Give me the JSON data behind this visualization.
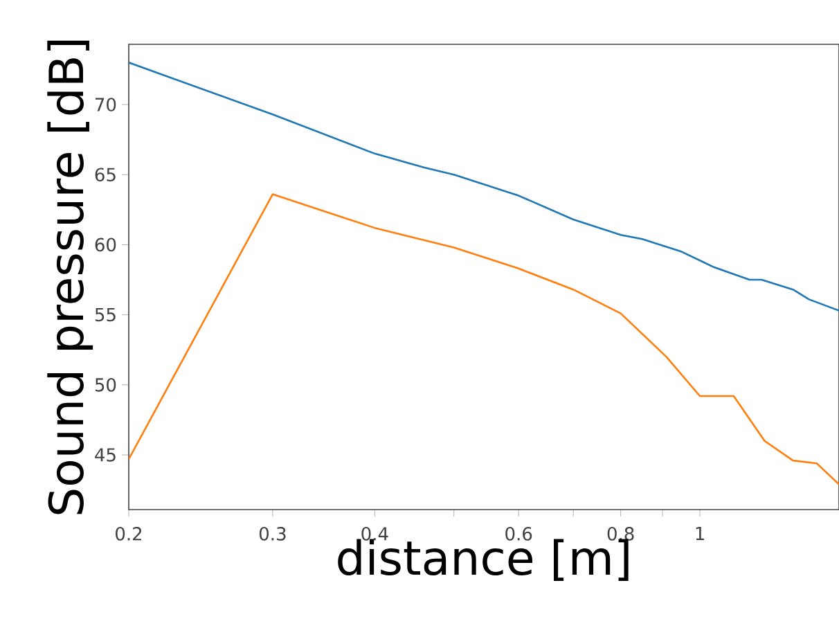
{
  "chart_data": {
    "type": "line",
    "xlabel": "distance [m]",
    "ylabel": "Sound pressure [dB]",
    "log": "x",
    "xlim": [
      0.2,
      1.48
    ],
    "ylim": [
      41.1,
      74.3
    ],
    "xticks": [
      0.2,
      0.3,
      0.4,
      {
        "value": 0.5,
        "label": null
      },
      0.6,
      {
        "value": 0.7,
        "label": null
      },
      0.8,
      {
        "value": 0.9,
        "label": null
      },
      1
    ],
    "yticks": [
      45,
      50,
      55,
      60,
      65,
      70
    ],
    "grid": false,
    "series": [
      {
        "color": "#1f77b4",
        "x": [
          0.2,
          0.3,
          0.4,
          0.46,
          0.5,
          0.6,
          0.7,
          0.8,
          0.85,
          0.95,
          1.04,
          1.15,
          1.19,
          1.3,
          1.36,
          1.48
        ],
        "values": [
          73.0,
          69.3,
          66.5,
          65.5,
          65.0,
          63.5,
          61.8,
          60.7,
          60.4,
          59.5,
          58.4,
          57.5,
          57.5,
          56.8,
          56.1,
          55.3
        ]
      },
      {
        "color": "#ff7f0e",
        "x": [
          0.2,
          0.3,
          0.4,
          0.5,
          0.6,
          0.7,
          0.8,
          0.91,
          1.0,
          1.1,
          1.2,
          1.3,
          1.39,
          1.48
        ],
        "values": [
          44.7,
          63.6,
          61.2,
          59.8,
          58.3,
          56.8,
          55.1,
          52.0,
          49.2,
          49.2,
          46.0,
          44.6,
          44.4,
          42.9
        ]
      }
    ]
  }
}
